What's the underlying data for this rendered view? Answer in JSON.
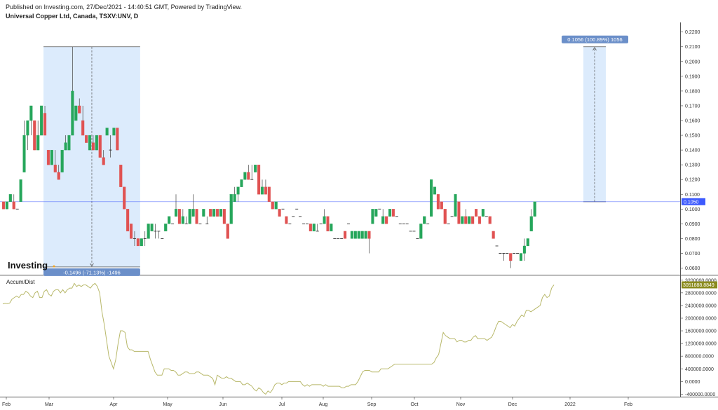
{
  "header": {
    "published": "Published on Investing.com, 27/Dec/2021 - 14:40:51 GMT, Powered by TradingView.",
    "symbol": "Universal Copper Ltd, Canada, TSXV:UNV, D"
  },
  "logo_text": "Investing",
  "chart_data": [
    {
      "type": "candlestick",
      "price_axis": {
        "ticks": [
          "0.2200",
          "0.2100",
          "0.2000",
          "0.1900",
          "0.1800",
          "0.1700",
          "0.1600",
          "0.1500",
          "0.1400",
          "0.1300",
          "0.1200",
          "0.1100",
          "0.1000",
          "0.0900",
          "0.0800",
          "0.0700",
          "0.0600"
        ],
        "range": [
          0.0555,
          0.2265
        ]
      },
      "last_price": {
        "value": 0.105,
        "label": "0.1050",
        "color": "#3d5afe"
      },
      "x_labels": [
        "Feb",
        "Mar",
        "Apr",
        "May",
        "Jun",
        "Jul",
        "Aug",
        "Sep",
        "Oct",
        "Nov",
        "Dec",
        "2022",
        "Feb"
      ],
      "colors": {
        "up": "#26a65b",
        "down": "#e05252"
      },
      "ohlc": [
        [
          0.105,
          0.105,
          0.1,
          0.1
        ],
        [
          0.1,
          0.105,
          0.1,
          0.105
        ],
        [
          0.105,
          0.11,
          0.105,
          0.11
        ],
        [
          0.105,
          0.11,
          0.1,
          0.1
        ],
        [
          0.1,
          0.1,
          0.1,
          0.1
        ],
        [
          0.105,
          0.12,
          0.105,
          0.12
        ],
        [
          0.125,
          0.16,
          0.125,
          0.15
        ],
        [
          0.15,
          0.16,
          0.14,
          0.16
        ],
        [
          0.16,
          0.17,
          0.15,
          0.17
        ],
        [
          0.16,
          0.16,
          0.14,
          0.14
        ],
        [
          0.14,
          0.16,
          0.14,
          0.15
        ],
        [
          0.15,
          0.17,
          0.15,
          0.17
        ],
        [
          0.165,
          0.17,
          0.15,
          0.15
        ],
        [
          0.14,
          0.14,
          0.13,
          0.13
        ],
        [
          0.13,
          0.14,
          0.13,
          0.14
        ],
        [
          0.13,
          0.14,
          0.125,
          0.125
        ],
        [
          0.125,
          0.13,
          0.12,
          0.12
        ],
        [
          0.125,
          0.14,
          0.125,
          0.14
        ],
        [
          0.14,
          0.15,
          0.14,
          0.145
        ],
        [
          0.14,
          0.15,
          0.14,
          0.15
        ],
        [
          0.15,
          0.21,
          0.15,
          0.18
        ],
        [
          0.16,
          0.17,
          0.16,
          0.17
        ],
        [
          0.17,
          0.175,
          0.165,
          0.165
        ],
        [
          0.16,
          0.17,
          0.15,
          0.15
        ],
        [
          0.15,
          0.15,
          0.145,
          0.145
        ],
        [
          0.14,
          0.15,
          0.14,
          0.15
        ],
        [
          0.145,
          0.15,
          0.14,
          0.14
        ],
        [
          0.14,
          0.15,
          0.14,
          0.15
        ],
        [
          0.15,
          0.15,
          0.135,
          0.135
        ],
        [
          0.135,
          0.14,
          0.13,
          0.13
        ],
        [
          0.15,
          0.155,
          0.15,
          0.155
        ],
        [
          0.14,
          0.15,
          0.135,
          0.14
        ],
        [
          0.15,
          0.155,
          0.15,
          0.155
        ],
        [
          0.155,
          0.155,
          0.14,
          0.14
        ],
        [
          0.13,
          0.13,
          0.115,
          0.115
        ],
        [
          0.115,
          0.115,
          0.1,
          0.1
        ],
        [
          0.1,
          0.1,
          0.085,
          0.085
        ],
        [
          0.09,
          0.09,
          0.08,
          0.08
        ],
        [
          0.08,
          0.085,
          0.075,
          0.08
        ],
        [
          0.08,
          0.08,
          0.075,
          0.075
        ],
        [
          0.075,
          0.08,
          0.075,
          0.08
        ],
        [
          0.08,
          0.085,
          0.075,
          0.08
        ],
        [
          0.08,
          0.09,
          0.08,
          0.09
        ],
        [
          0.085,
          0.09,
          0.085,
          0.09
        ],
        [
          0.085,
          0.09,
          0.08,
          0.085
        ],
        [
          0.085,
          0.085,
          0.08,
          0.085
        ],
        [
          0.08,
          0.08,
          0.08,
          0.08
        ],
        [
          0.085,
          0.09,
          0.085,
          0.09
        ],
        [
          0.09,
          0.095,
          0.09,
          0.095
        ],
        [
          0.09,
          0.09,
          0.09,
          0.09
        ],
        [
          0.095,
          0.11,
          0.095,
          0.1
        ],
        [
          0.1,
          0.1,
          0.09,
          0.09
        ],
        [
          0.09,
          0.1,
          0.09,
          0.095
        ],
        [
          0.09,
          0.095,
          0.09,
          0.09
        ],
        [
          0.09,
          0.1,
          0.09,
          0.1
        ],
        [
          0.095,
          0.11,
          0.095,
          0.1
        ],
        [
          0.1,
          0.1,
          0.09,
          0.09
        ],
        [
          0.09,
          0.09,
          0.09,
          0.09
        ],
        [
          0.095,
          0.1,
          0.095,
          0.1
        ],
        [
          0.09,
          0.095,
          0.09,
          0.09
        ],
        [
          0.1,
          0.1,
          0.095,
          0.095
        ],
        [
          0.095,
          0.1,
          0.095,
          0.1
        ],
        [
          0.1,
          0.1,
          0.095,
          0.095
        ],
        [
          0.095,
          0.1,
          0.095,
          0.1
        ],
        [
          0.1,
          0.1,
          0.09,
          0.09
        ],
        [
          0.09,
          0.09,
          0.08,
          0.08
        ],
        [
          0.09,
          0.11,
          0.09,
          0.11
        ],
        [
          0.105,
          0.115,
          0.105,
          0.11
        ],
        [
          0.11,
          0.115,
          0.105,
          0.115
        ],
        [
          0.115,
          0.12,
          0.115,
          0.12
        ],
        [
          0.12,
          0.125,
          0.12,
          0.125
        ],
        [
          0.125,
          0.13,
          0.12,
          0.12
        ],
        [
          0.12,
          0.13,
          0.12,
          0.12
        ],
        [
          0.125,
          0.13,
          0.125,
          0.13
        ],
        [
          0.13,
          0.13,
          0.11,
          0.11
        ],
        [
          0.11,
          0.12,
          0.11,
          0.115
        ],
        [
          0.115,
          0.12,
          0.11,
          0.11
        ],
        [
          0.115,
          0.115,
          0.105,
          0.105
        ],
        [
          0.105,
          0.105,
          0.1,
          0.1
        ],
        [
          0.1,
          0.105,
          0.1,
          0.105
        ],
        [
          0.1,
          0.1,
          0.095,
          0.095
        ],
        [
          0.1,
          0.1,
          0.1,
          0.1
        ],
        [
          0.095,
          0.095,
          0.09,
          0.09
        ],
        [
          0.09,
          0.09,
          0.09,
          0.09
        ],
        [
          0.095,
          0.095,
          0.095,
          0.095
        ],
        [
          0.1,
          0.1,
          0.1,
          0.1
        ],
        [
          0.095,
          0.095,
          0.095,
          0.095
        ],
        [
          0.09,
          0.09,
          0.09,
          0.09
        ],
        [
          0.09,
          0.09,
          0.09,
          0.09
        ],
        [
          0.09,
          0.09,
          0.085,
          0.085
        ],
        [
          0.085,
          0.09,
          0.085,
          0.09
        ],
        [
          0.085,
          0.09,
          0.085,
          0.085
        ],
        [
          0.09,
          0.09,
          0.09,
          0.09
        ],
        [
          0.09,
          0.1,
          0.09,
          0.095
        ],
        [
          0.095,
          0.095,
          0.085,
          0.085
        ],
        [
          0.085,
          0.09,
          0.085,
          0.09
        ],
        [
          0.08,
          0.08,
          0.08,
          0.08
        ],
        [
          0.08,
          0.08,
          0.08,
          0.08
        ],
        [
          0.08,
          0.08,
          0.08,
          0.08
        ],
        [
          0.085,
          0.085,
          0.08,
          0.08
        ],
        [
          0.09,
          0.09,
          0.09,
          0.09
        ],
        [
          0.08,
          0.085,
          0.08,
          0.085
        ],
        [
          0.08,
          0.085,
          0.08,
          0.085
        ],
        [
          0.08,
          0.085,
          0.08,
          0.085
        ],
        [
          0.08,
          0.085,
          0.08,
          0.085
        ],
        [
          0.08,
          0.085,
          0.08,
          0.085
        ],
        [
          0.085,
          0.085,
          0.07,
          0.08
        ],
        [
          0.09,
          0.1,
          0.09,
          0.1
        ],
        [
          0.095,
          0.1,
          0.095,
          0.1
        ],
        [
          0.1,
          0.1,
          0.1,
          0.1
        ],
        [
          0.09,
          0.1,
          0.09,
          0.095
        ],
        [
          0.095,
          0.095,
          0.09,
          0.09
        ],
        [
          0.095,
          0.1,
          0.095,
          0.1
        ],
        [
          0.1,
          0.1,
          0.095,
          0.095
        ],
        [
          0.095,
          0.095,
          0.095,
          0.095
        ],
        [
          0.09,
          0.09,
          0.09,
          0.09
        ],
        [
          0.09,
          0.09,
          0.09,
          0.09
        ],
        [
          0.09,
          0.09,
          0.09,
          0.09
        ],
        [
          0.085,
          0.085,
          0.085,
          0.085
        ],
        [
          0.085,
          0.085,
          0.085,
          0.085
        ],
        [
          0.08,
          0.08,
          0.08,
          0.08
        ],
        [
          0.08,
          0.09,
          0.08,
          0.09
        ],
        [
          0.09,
          0.095,
          0.09,
          0.095
        ],
        [
          0.09,
          0.09,
          0.09,
          0.09
        ],
        [
          0.095,
          0.12,
          0.095,
          0.12
        ],
        [
          0.11,
          0.115,
          0.11,
          0.115
        ],
        [
          0.11,
          0.11,
          0.1,
          0.1
        ],
        [
          0.105,
          0.105,
          0.1,
          0.1
        ],
        [
          0.1,
          0.1,
          0.09,
          0.09
        ],
        [
          0.09,
          0.09,
          0.09,
          0.09
        ],
        [
          0.095,
          0.095,
          0.095,
          0.095
        ],
        [
          0.095,
          0.11,
          0.095,
          0.11
        ],
        [
          0.105,
          0.105,
          0.09,
          0.09
        ],
        [
          0.09,
          0.095,
          0.09,
          0.095
        ],
        [
          0.095,
          0.1,
          0.09,
          0.09
        ],
        [
          0.09,
          0.095,
          0.09,
          0.095
        ],
        [
          0.095,
          0.095,
          0.09,
          0.09
        ],
        [
          0.1,
          0.1,
          0.095,
          0.095
        ],
        [
          0.095,
          0.095,
          0.09,
          0.09
        ],
        [
          0.095,
          0.1,
          0.095,
          0.1
        ],
        [
          0.095,
          0.095,
          0.095,
          0.095
        ],
        [
          0.095,
          0.095,
          0.09,
          0.09
        ],
        [
          0.085,
          0.085,
          0.08,
          0.08
        ],
        [
          0.075,
          0.075,
          0.075,
          0.075
        ],
        [
          0.07,
          0.07,
          0.07,
          0.07
        ],
        [
          0.07,
          0.07,
          0.065,
          0.07
        ],
        [
          0.07,
          0.07,
          0.07,
          0.07
        ],
        [
          0.07,
          0.07,
          0.06,
          0.065
        ],
        [
          0.07,
          0.07,
          0.07,
          0.07
        ],
        [
          0.07,
          0.07,
          0.07,
          0.07
        ],
        [
          0.065,
          0.07,
          0.065,
          0.07
        ],
        [
          0.07,
          0.08,
          0.065,
          0.075
        ],
        [
          0.075,
          0.08,
          0.075,
          0.08
        ],
        [
          0.085,
          0.1,
          0.085,
          0.095
        ],
        [
          0.095,
          0.105,
          0.095,
          0.105
        ]
      ],
      "measure_down": {
        "label": "-0.1496 (-71.13%) -1496",
        "start_index": 12,
        "end_index": 39,
        "high": 0.21,
        "low": 0.0608
      },
      "measure_up": {
        "label": "0.1056 (100.89%) 1056",
        "low": 0.105,
        "high": 0.21
      },
      "fill_color": "#dcebfc"
    },
    {
      "type": "line",
      "title": "Accum/Dist",
      "color": "#b8b86a",
      "y_ticks": [
        "3200000.0000",
        "2800000.0000",
        "2400000.0000",
        "2000000.0000",
        "1600000.0000",
        "1200000.0000",
        "800000.0000",
        "400000.0000",
        "0.0000",
        "-400000.0000"
      ],
      "ylim": [
        -480000,
        3350000
      ],
      "last_value": {
        "value": 3051888.8849,
        "label": "3051888.8849",
        "color": "#8b8b1e"
      },
      "values": [
        2450000,
        2470000,
        2460000,
        2480000,
        2600000,
        2650000,
        2700000,
        2650000,
        2750000,
        2750000,
        2850000,
        2800000,
        2700000,
        2650000,
        2800000,
        2850000,
        2650000,
        2650000,
        2850000,
        2900000,
        2750000,
        2700000,
        2850000,
        2900000,
        2900000,
        2800000,
        2900000,
        2800000,
        2900000,
        2950000,
        2950000,
        3100000,
        3000000,
        3050000,
        3000000,
        3050000,
        3050000,
        3000000,
        2950000,
        3050000,
        3100000,
        3000000,
        2800000,
        2200000,
        1800000,
        1300000,
        800000,
        600000,
        400000,
        700000,
        1200000,
        1600000,
        1600000,
        1550000,
        1100000,
        1000000,
        1000000,
        950000,
        950000,
        950000,
        950000,
        950000,
        950000,
        950000,
        700000,
        500000,
        300000,
        200000,
        200000,
        200000,
        400000,
        400000,
        400000,
        350000,
        350000,
        300000,
        200000,
        200000,
        250000,
        300000,
        300000,
        250000,
        250000,
        250000,
        300000,
        300000,
        250000,
        200000,
        200000,
        200000,
        150000,
        100000,
        -100000,
        200000,
        150000,
        100000,
        100000,
        150000,
        100000,
        100000,
        50000,
        0,
        0,
        0,
        -100000,
        -100000,
        -50000,
        -100000,
        -150000,
        -250000,
        -300000,
        -200000,
        -250000,
        -350000,
        -400000,
        -300000,
        -350000,
        -250000,
        -100000,
        -50000,
        -50000,
        -100000,
        -50000,
        -50000,
        0,
        0,
        0,
        0,
        0,
        0,
        -100000,
        -150000,
        -100000,
        -150000,
        -100000,
        -100000,
        -100000,
        -100000,
        -100000,
        -150000,
        -100000,
        -150000,
        -150000,
        -150000,
        -150000,
        -150000,
        -150000,
        -200000,
        -200000,
        -150000,
        -150000,
        -100000,
        -100000,
        -100000,
        0,
        150000,
        300000,
        350000,
        350000,
        350000,
        300000,
        300000,
        300000,
        300000,
        400000,
        400000,
        400000,
        400000,
        450000,
        500000,
        550000,
        550000,
        550000,
        550000,
        550000,
        550000,
        550000,
        550000,
        550000,
        550000,
        550000,
        550000,
        550000,
        550000,
        550000,
        550000,
        550000,
        600000,
        750000,
        850000,
        1200000,
        1550000,
        1450000,
        1400000,
        1350000,
        1350000,
        1350000,
        1250000,
        1300000,
        1300000,
        1250000,
        1250000,
        1300000,
        1300000,
        1400000,
        1450000,
        1350000,
        1350000,
        1350000,
        1350000,
        1300000,
        1350000,
        1400000,
        1550000,
        1750000,
        1900000,
        1900000,
        1850000,
        1800000,
        1750000,
        1700000,
        1800000,
        1750000,
        1900000,
        2000000,
        2100000,
        2050000,
        2250000,
        2250000,
        2200000,
        2250000,
        2300000,
        2350000,
        2400000,
        2650000,
        2750000,
        2650000,
        2700000,
        2950000,
        3051888
      ]
    }
  ]
}
